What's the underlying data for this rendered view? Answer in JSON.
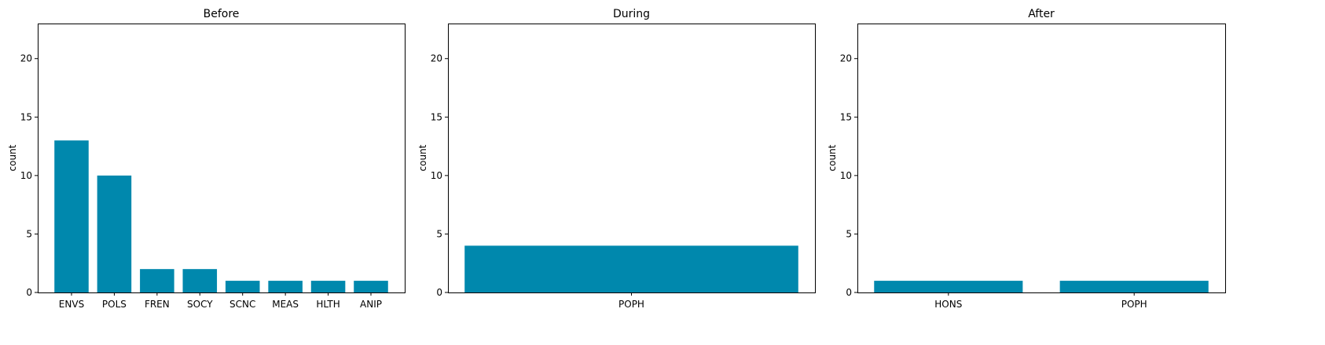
{
  "bar_color": "#0088ad",
  "chart_data": [
    {
      "type": "bar",
      "title": "Before",
      "xlabel": "",
      "ylabel": "count",
      "ylim": [
        0,
        23
      ],
      "yticks": [
        0,
        5,
        10,
        15,
        20
      ],
      "categories": [
        "ENVS",
        "POLS",
        "FREN",
        "SOCY",
        "SCNC",
        "MEAS",
        "HLTH",
        "ANIP"
      ],
      "values": [
        13,
        10,
        2,
        2,
        1,
        1,
        1,
        1
      ]
    },
    {
      "type": "bar",
      "title": "During",
      "xlabel": "",
      "ylabel": "count",
      "ylim": [
        0,
        23
      ],
      "yticks": [
        0,
        5,
        10,
        15,
        20
      ],
      "categories": [
        "POPH"
      ],
      "values": [
        4
      ]
    },
    {
      "type": "bar",
      "title": "After",
      "xlabel": "",
      "ylabel": "count",
      "ylim": [
        0,
        23
      ],
      "yticks": [
        0,
        5,
        10,
        15,
        20
      ],
      "categories": [
        "HONS",
        "POPH"
      ],
      "values": [
        1,
        1
      ]
    }
  ]
}
